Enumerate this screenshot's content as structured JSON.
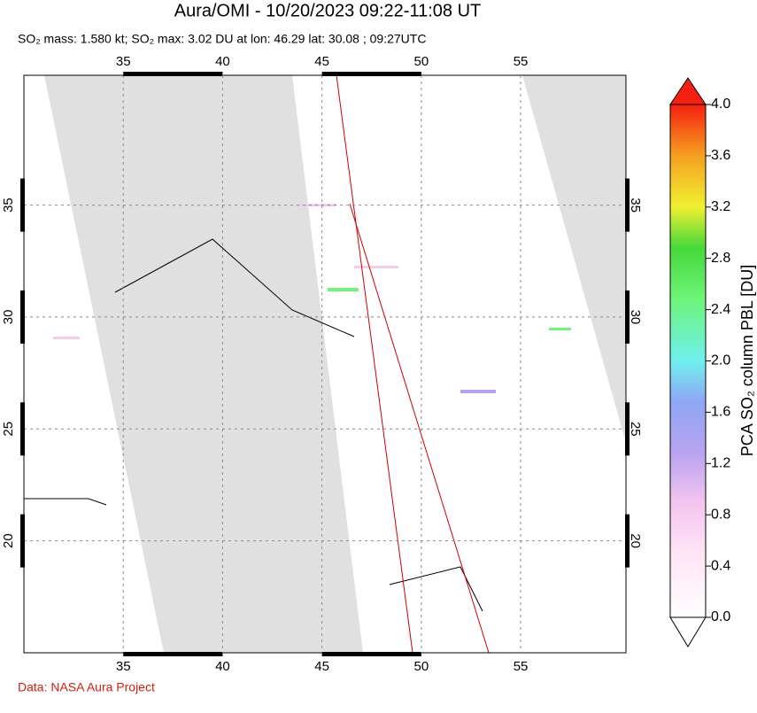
{
  "chart_data": {
    "type": "map",
    "title": "Aura/OMI - 10/20/2023 09:22-11:08 UT",
    "subtitle": "SO₂ mass: 1.580 kt; SO₂ max: 3.02 DU at lon: 46.29 lat: 30.08 ; 09:27UTC",
    "xlim": [
      30,
      60.3
    ],
    "ylim": [
      15,
      40.8
    ],
    "xticks": [
      35,
      40,
      45,
      50,
      55
    ],
    "yticks": [
      20,
      25,
      30,
      35
    ],
    "grid": true,
    "colorbar": {
      "label": "PCA SO₂ column PBL [DU]",
      "lim": [
        0,
        4
      ],
      "ticks": [
        {
          "value": 0,
          "label": "0.0"
        },
        0.4,
        0.8,
        1.2,
        1.6,
        {
          "value": 2,
          "label": "2.0"
        },
        2.4,
        2.8,
        3.2,
        3.6,
        {
          "value": 4,
          "label": "4.0"
        }
      ]
    },
    "credit": "Data: NASA Aura Project"
  }
}
